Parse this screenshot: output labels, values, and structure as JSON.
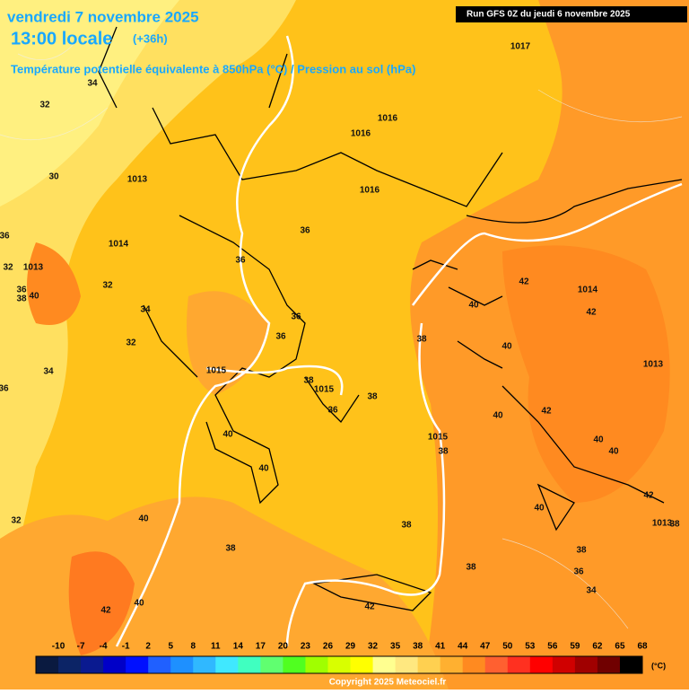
{
  "header": {
    "title": "vendredi 7 novembre 2025",
    "time": "13:00 locale",
    "offset": "(+36h)",
    "subtitle": "Température potentielle équivalente à 850hPa (°C) / Pression au sol (hPa)",
    "run": "Run GFS 0Z du jeudi 6 novembre 2025"
  },
  "map_labels": [
    32,
    34,
    30,
    1013,
    1017,
    1016,
    1016,
    1016,
    1014,
    36,
    32,
    1013,
    36,
    38,
    40,
    32,
    34,
    36,
    36,
    36,
    36,
    32,
    34,
    36,
    1015,
    38,
    1015,
    38,
    36,
    38,
    40,
    42,
    1014,
    42,
    40,
    1013,
    42,
    40,
    1015,
    38,
    40,
    40,
    40,
    40,
    42,
    40,
    1013,
    38,
    32,
    40,
    38,
    38,
    38,
    36,
    34,
    40,
    42,
    42,
    38
  ],
  "legend": {
    "ticks": [
      -10,
      -7,
      -4,
      -1,
      2,
      5,
      8,
      11,
      14,
      17,
      20,
      23,
      26,
      29,
      32,
      35,
      38,
      41,
      44,
      47,
      50,
      53,
      56,
      59,
      62,
      65,
      68
    ],
    "colors": [
      "#0a1a40",
      "#0c2466",
      "#0a1a90",
      "#0000c8",
      "#0010ff",
      "#2060ff",
      "#1e90ff",
      "#30b8ff",
      "#40e8ff",
      "#40ffc0",
      "#60ff70",
      "#50ff20",
      "#a0ff00",
      "#d8ff00",
      "#ffff00",
      "#ffff90",
      "#ffe880",
      "#ffd050",
      "#ffb030",
      "#ff8a20",
      "#ff6030",
      "#ff3020",
      "#ff0000",
      "#d00000",
      "#a00000",
      "#700000",
      "#000000"
    ],
    "unit": "(°C)"
  },
  "copyright": "Copyright 2025 Meteociel.fr"
}
